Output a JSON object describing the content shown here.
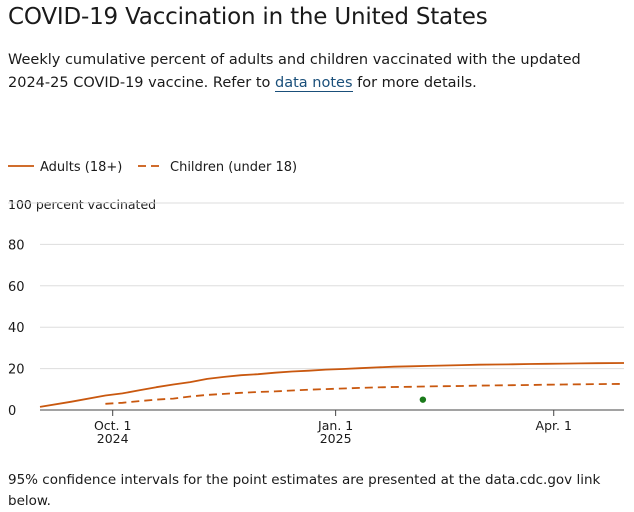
{
  "header": {
    "title": "COVID-19 Vaccination in the United States",
    "subtitle_before": "Weekly cumulative percent of adults and children vaccinated with the updated 2024-25 COVID-19 vaccine. Refer to ",
    "subtitle_link": "data notes",
    "subtitle_after": " for more details."
  },
  "footnote": "95% confidence intervals for the point estimates are presented at the data.cdc.gov link below.",
  "chart_data": {
    "type": "line",
    "ylabel": "100 percent vaccinated",
    "ylim": [
      0,
      100
    ],
    "yticks": [
      0,
      20,
      40,
      60,
      80
    ],
    "ytick_labels": [
      "0",
      "20",
      "40",
      "60",
      "80"
    ],
    "x_start": "2024-09-01",
    "x_end": "2025-04-30",
    "xticks": [
      {
        "date": "2024-10-01",
        "label1": "Oct. 1",
        "label2": "2024"
      },
      {
        "date": "2025-01-01",
        "label1": "Jan. 1",
        "label2": "2025"
      },
      {
        "date": "2025-04-01",
        "label1": "Apr. 1",
        "label2": ""
      }
    ],
    "grid": true,
    "legend_position": "top-left",
    "colors": {
      "series": "#c9580f",
      "marker": "#1a7a1a",
      "grid": "#dddddd",
      "axis": "#444444"
    },
    "series": [
      {
        "name": "Adults (18+)",
        "style": "solid",
        "points": [
          [
            "2024-09-01",
            1.5
          ],
          [
            "2024-09-14",
            4.0
          ],
          [
            "2024-09-28",
            7.0
          ],
          [
            "2024-10-05",
            8.0
          ],
          [
            "2024-10-12",
            9.5
          ],
          [
            "2024-10-19",
            11.0
          ],
          [
            "2024-10-26",
            12.3
          ],
          [
            "2024-11-02",
            13.5
          ],
          [
            "2024-11-09",
            15.0
          ],
          [
            "2024-11-16",
            16.0
          ],
          [
            "2024-11-23",
            16.8
          ],
          [
            "2024-11-30",
            17.3
          ],
          [
            "2024-12-07",
            18.0
          ],
          [
            "2024-12-14",
            18.6
          ],
          [
            "2024-12-21",
            19.0
          ],
          [
            "2024-12-28",
            19.5
          ],
          [
            "2025-01-04",
            19.8
          ],
          [
            "2025-01-11",
            20.2
          ],
          [
            "2025-01-18",
            20.6
          ],
          [
            "2025-01-25",
            20.9
          ],
          [
            "2025-02-01",
            21.1
          ],
          [
            "2025-02-08",
            21.3
          ],
          [
            "2025-02-15",
            21.5
          ],
          [
            "2025-02-22",
            21.7
          ],
          [
            "2025-03-01",
            21.9
          ],
          [
            "2025-03-08",
            22.0
          ],
          [
            "2025-03-15",
            22.1
          ],
          [
            "2025-03-22",
            22.2
          ],
          [
            "2025-03-29",
            22.3
          ],
          [
            "2025-04-05",
            22.4
          ],
          [
            "2025-04-12",
            22.5
          ],
          [
            "2025-04-19",
            22.6
          ],
          [
            "2025-04-30",
            22.7
          ]
        ]
      },
      {
        "name": "Children (under 18)",
        "style": "dashed",
        "points": [
          [
            "2024-09-28",
            3.0
          ],
          [
            "2024-10-05",
            3.5
          ],
          [
            "2024-10-12",
            4.3
          ],
          [
            "2024-10-19",
            5.0
          ],
          [
            "2024-10-26",
            5.5
          ],
          [
            "2024-11-02",
            6.5
          ],
          [
            "2024-11-09",
            7.3
          ],
          [
            "2024-11-16",
            7.8
          ],
          [
            "2024-11-23",
            8.3
          ],
          [
            "2024-11-30",
            8.7
          ],
          [
            "2024-12-07",
            9.0
          ],
          [
            "2024-12-14",
            9.4
          ],
          [
            "2024-12-21",
            9.8
          ],
          [
            "2024-12-28",
            10.1
          ],
          [
            "2025-01-04",
            10.4
          ],
          [
            "2025-01-11",
            10.7
          ],
          [
            "2025-01-18",
            10.9
          ],
          [
            "2025-01-25",
            11.1
          ],
          [
            "2025-02-01",
            11.2
          ],
          [
            "2025-02-08",
            11.4
          ],
          [
            "2025-02-15",
            11.5
          ],
          [
            "2025-02-22",
            11.6
          ],
          [
            "2025-03-01",
            11.8
          ],
          [
            "2025-03-08",
            11.9
          ],
          [
            "2025-03-15",
            12.0
          ],
          [
            "2025-03-22",
            12.1
          ],
          [
            "2025-03-29",
            12.2
          ],
          [
            "2025-04-05",
            12.3
          ],
          [
            "2025-04-12",
            12.4
          ],
          [
            "2025-04-19",
            12.5
          ],
          [
            "2025-04-30",
            12.6
          ]
        ]
      }
    ],
    "markers": [
      {
        "date": "2025-02-06",
        "value": 5
      }
    ]
  }
}
